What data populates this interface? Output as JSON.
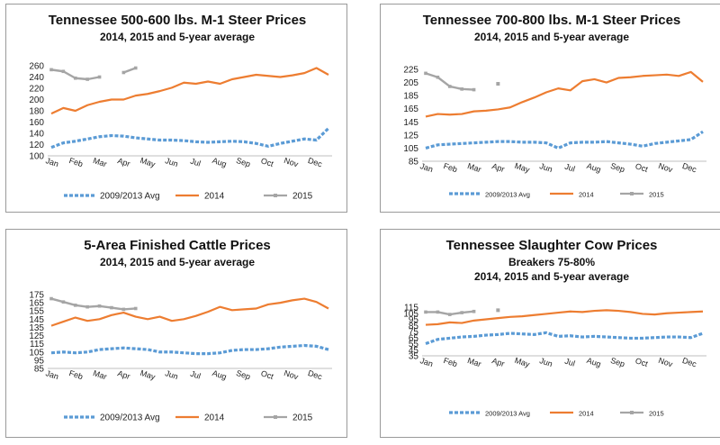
{
  "panels": [
    {
      "title": "Tennessee 500-600 lbs. M-1 Steer Prices",
      "subtitles": [
        "2014, 2015 and 5-year average"
      ],
      "chart_data": {
        "type": "line",
        "x_labels": [
          "Jan",
          "Feb",
          "Mar",
          "Apr",
          "May",
          "Jun",
          "Jul",
          "Aug",
          "Sep",
          "Oct",
          "Nov",
          "Dec"
        ],
        "yticks": [
          100,
          120,
          140,
          160,
          180,
          200,
          220,
          240,
          260
        ],
        "ylim": [
          100,
          260
        ],
        "series": [
          {
            "name": "2009/2013 Avg",
            "color": "#5b9bd5",
            "style": "dashed",
            "values": [
              115,
              123,
              126,
              130,
              134,
              136,
              135,
              132,
              130,
              128,
              128,
              127,
              125,
              124,
              125,
              126,
              125,
              122,
              117,
              122,
              126,
              130,
              128,
              149
            ]
          },
          {
            "name": "2014",
            "color": "#ed7d31",
            "style": "solid",
            "values": [
              175,
              185,
              180,
              190,
              196,
              200,
              200,
              207,
              210,
              215,
              221,
              230,
              228,
              232,
              228,
              236,
              240,
              244,
              242,
              240,
              243,
              247,
              256,
              244
            ]
          },
          {
            "name": "2015",
            "color": "#a5a5a5",
            "style": "solid",
            "values": [
              253,
              250,
              238,
              236,
              240,
              null,
              248,
              256
            ]
          }
        ]
      }
    },
    {
      "title": "Tennessee 700-800 lbs. M-1 Steer Prices",
      "subtitles": [
        "2014, 2015 and 5-year average"
      ],
      "chart_data": {
        "type": "line",
        "x_labels": [
          "Jan",
          "Feb",
          "Mar",
          "Apr",
          "May",
          "Jun",
          "Jul",
          "Aug",
          "Sep",
          "Oct",
          "Nov",
          "Dec"
        ],
        "yticks": [
          85,
          105,
          125,
          145,
          165,
          185,
          205,
          225
        ],
        "ylim": [
          85,
          225
        ],
        "series": [
          {
            "name": "2009/2013 Avg",
            "color": "#5b9bd5",
            "style": "dashed",
            "values": [
              105,
              110,
              111,
              112,
              113,
              114,
              115,
              115,
              114,
              114,
              113,
              105,
              113,
              114,
              114,
              115,
              113,
              111,
              108,
              112,
              114,
              116,
              118,
              130
            ]
          },
          {
            "name": "2014",
            "color": "#ed7d31",
            "style": "solid",
            "values": [
              153,
              157,
              156,
              157,
              161,
              162,
              164,
              167,
              175,
              182,
              190,
              196,
              193,
              207,
              210,
              205,
              212,
              213,
              215,
              216,
              217,
              215,
              221,
              206
            ]
          },
          {
            "name": "2015",
            "color": "#a5a5a5",
            "style": "solid",
            "values": [
              219,
              213,
              199,
              195,
              194,
              null,
              203
            ]
          }
        ]
      }
    },
    {
      "title": "5-Area Finished Cattle Prices",
      "subtitles": [
        "2014, 2015 and 5-year average"
      ],
      "chart_data": {
        "type": "line",
        "x_labels": [
          "Jan",
          "Feb",
          "Mar",
          "Apr",
          "May",
          "Jun",
          "Jul",
          "Aug",
          "Sep",
          "Oct",
          "Nov",
          "Dec"
        ],
        "yticks": [
          85,
          95,
          105,
          115,
          125,
          135,
          145,
          155,
          165,
          175
        ],
        "ylim": [
          85,
          175
        ],
        "series": [
          {
            "name": "2009/2013 Avg",
            "color": "#5b9bd5",
            "style": "dashed",
            "values": [
              104,
              105,
              104,
              105,
              108,
              109,
              110,
              109,
              108,
              105,
              105,
              104,
              103,
              103,
              104,
              107,
              108,
              108,
              109,
              111,
              112,
              113,
              112,
              108
            ]
          },
          {
            "name": "2014",
            "color": "#ed7d31",
            "style": "solid",
            "values": [
              137,
              142,
              147,
              143,
              145,
              150,
              153,
              148,
              145,
              148,
              143,
              145,
              149,
              154,
              160,
              156,
              157,
              158,
              163,
              165,
              168,
              170,
              166,
              158
            ]
          },
          {
            "name": "2015",
            "color": "#a5a5a5",
            "style": "solid",
            "values": [
              170,
              166,
              162,
              160,
              161,
              159,
              157,
              158
            ]
          }
        ]
      }
    },
    {
      "title": "Tennessee Slaughter Cow Prices",
      "subtitles": [
        "Breakers 75-80%",
        "2014, 2015 and 5-year average"
      ],
      "chart_data": {
        "type": "line",
        "x_labels": [
          "Jan",
          "Feb",
          "Mar",
          "Apr",
          "May",
          "Jun",
          "Jul",
          "Aug",
          "Sep",
          "Oct",
          "Nov",
          "Dec"
        ],
        "yticks": [
          35,
          45,
          55,
          65,
          75,
          85,
          95,
          105,
          115
        ],
        "ylim": [
          35,
          115
        ],
        "series": [
          {
            "name": "2009/2013 Avg",
            "color": "#5b9bd5",
            "style": "dashed",
            "values": [
              55,
              62,
              64,
              66,
              67,
              69,
              70,
              72,
              71,
              70,
              73,
              67,
              68,
              66,
              67,
              66,
              65,
              64,
              64,
              65,
              66,
              66,
              65,
              72
            ]
          },
          {
            "name": "2014",
            "color": "#ed7d31",
            "style": "solid",
            "values": [
              86,
              87,
              90,
              89,
              93,
              95,
              97,
              99,
              100,
              102,
              104,
              106,
              108,
              107,
              109,
              110,
              109,
              107,
              104,
              103,
              105,
              106,
              107,
              108
            ]
          },
          {
            "name": "2015",
            "color": "#a5a5a5",
            "style": "solid",
            "values": [
              107,
              107,
              103,
              106,
              108,
              null,
              110
            ]
          }
        ]
      }
    }
  ]
}
